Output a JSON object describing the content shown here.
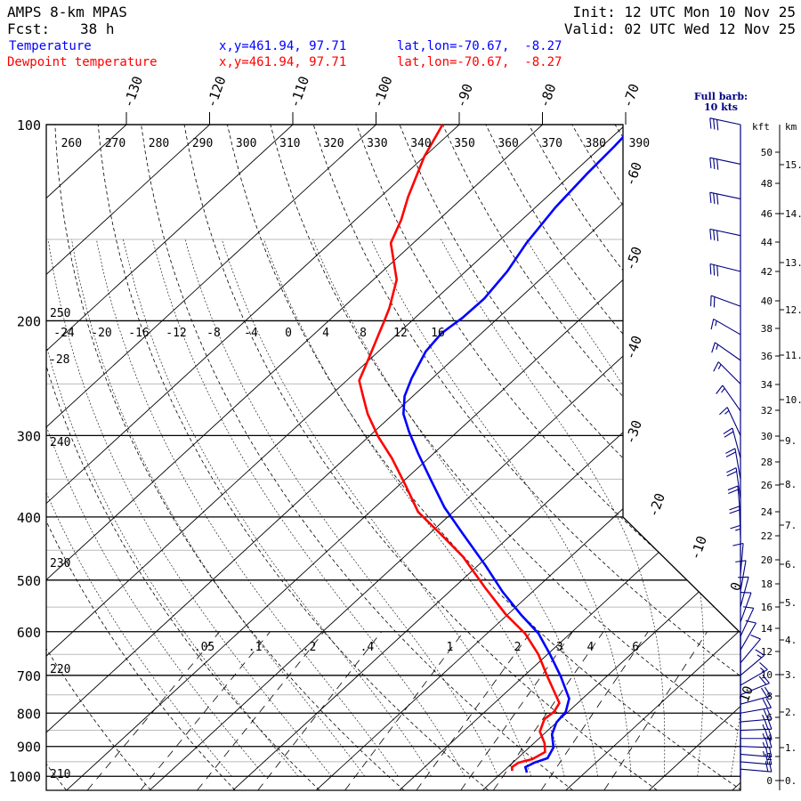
{
  "header": {
    "model": "AMPS 8-km MPAS",
    "forecast_label": "Fcst:",
    "forecast_hours": "38 h",
    "init": "Init: 12 UTC Mon 10 Nov 25",
    "valid": "Valid: 02 UTC Wed 12 Nov 25"
  },
  "legend": [
    {
      "name": "Temperature",
      "xy": "x,y=461.94, 97.71",
      "latlon": "lat,lon=-70.67,  -8.27",
      "color": "#0000ff"
    },
    {
      "name": "Dewpoint temperature",
      "xy": "x,y=461.94, 97.71",
      "latlon": "lat,lon=-70.67,  -8.27",
      "color": "#ff0000"
    }
  ],
  "wind_note": {
    "line1": "Full barb:",
    "line2": "10 kts"
  },
  "chart_data": {
    "type": "line",
    "title": "Skew-T log-P sounding",
    "xlabel": "Temperature (°C)",
    "ylabel": "Pressure (hPa)",
    "ylim": [
      1000,
      100
    ],
    "pressure_ticks": [
      100,
      200,
      300,
      400,
      500,
      600,
      700,
      800,
      900,
      1000
    ],
    "isotherm_labels_top": [
      "-130",
      "-120",
      "-110",
      "-100",
      "-90",
      "-80",
      "-70"
    ],
    "isotherm_labels_right": [
      "-60",
      "-50",
      "-40",
      "-30",
      "-20",
      "-10",
      "0",
      "10"
    ],
    "dry_adiabat_labels_top": [
      "260",
      "270",
      "280",
      "290",
      "300",
      "310",
      "320",
      "330",
      "340",
      "350",
      "360",
      "370",
      "380",
      "390"
    ],
    "dry_adiabat_labels_left": [
      "250",
      "240",
      "230",
      "220",
      "210"
    ],
    "moist_adiabat_labels": [
      "-24",
      "-20",
      "-16",
      "-12",
      "-8",
      "-4",
      "0",
      "4",
      "8",
      "12",
      "16"
    ],
    "moist_adiabat_extra_label": "-28",
    "mixing_ratio_labels": [
      ".05",
      ".1",
      ".2",
      ".4",
      "1",
      "2",
      "3",
      "4",
      "6"
    ],
    "mixing_ratio_values": [
      0.05,
      0.1,
      0.2,
      0.4,
      1,
      2,
      3,
      4,
      6,
      10
    ],
    "height_kft_title": "kft",
    "height_km_title": "km",
    "height_kft_labels": [
      "50",
      "48",
      "46",
      "44",
      "42",
      "40",
      "38",
      "36",
      "34",
      "32",
      "30",
      "28",
      "26",
      "24",
      "22",
      "20",
      "18",
      "16",
      "14",
      "12",
      "10",
      "8",
      "6",
      "4",
      "2",
      "0"
    ],
    "height_km_labels": [
      "15.",
      "14.",
      "13.",
      "12.",
      "11.",
      "10.",
      "9.",
      "8.",
      "7.",
      "6.",
      "5.",
      "4.",
      "3.",
      "2.",
      "1.",
      "0."
    ],
    "series": [
      {
        "name": "Temperature",
        "color": "#0000ff",
        "pressure": [
          100,
          108,
          119,
          134,
          152,
          168,
          185,
          198,
          209,
          223,
          245,
          261,
          278,
          296,
          320,
          352,
          387,
          425,
          474,
          521,
          564,
          604,
          650,
          703,
          760,
          796,
          827,
          862,
          903,
          938,
          953,
          968,
          987
        ],
        "values": [
          -68.9,
          -68.5,
          -68.2,
          -67.6,
          -66.4,
          -65.0,
          -64.2,
          -64.3,
          -64.8,
          -64.3,
          -62.5,
          -61.0,
          -58.8,
          -55.8,
          -51.8,
          -46.7,
          -41.6,
          -35.9,
          -29.2,
          -23.6,
          -18.5,
          -13.8,
          -9.7,
          -5.5,
          -1.6,
          -0.3,
          0.0,
          1.0,
          2.9,
          3.6,
          2.6,
          2.1,
          3.0
        ]
      },
      {
        "name": "Dewpoint temperature",
        "color": "#ff0000",
        "pressure": [
          100,
          112,
          129,
          140,
          152,
          173,
          191,
          200,
          209,
          230,
          247,
          261,
          278,
          301,
          325,
          357,
          393,
          425,
          460,
          513,
          564,
          604,
          650,
          703,
          772,
          796,
          817,
          854,
          890,
          918,
          941,
          953,
          968,
          981
        ],
        "values": [
          -92.0,
          -90.0,
          -86.7,
          -84.5,
          -82.7,
          -77.2,
          -74.4,
          -73.3,
          -72.3,
          -70.1,
          -68.5,
          -66.0,
          -63.1,
          -58.9,
          -54.4,
          -49.3,
          -44.2,
          -38.6,
          -33.0,
          -26.3,
          -20.3,
          -15.4,
          -11.1,
          -7.1,
          -2.2,
          -1.7,
          -1.9,
          -0.8,
          1.3,
          2.5,
          1.9,
          0.7,
          0.5,
          1.0
        ]
      }
    ],
    "wind": [
      {
        "p": 100,
        "dir": 282,
        "spd": 30
      },
      {
        "p": 115,
        "dir": 282,
        "spd": 30
      },
      {
        "p": 130,
        "dir": 282,
        "spd": 30
      },
      {
        "p": 148,
        "dir": 282,
        "spd": 30
      },
      {
        "p": 168,
        "dir": 284,
        "spd": 30
      },
      {
        "p": 190,
        "dir": 290,
        "spd": 20
      },
      {
        "p": 210,
        "dir": 300,
        "spd": 15
      },
      {
        "p": 230,
        "dir": 305,
        "spd": 15
      },
      {
        "p": 250,
        "dir": 315,
        "spd": 15
      },
      {
        "p": 275,
        "dir": 325,
        "spd": 15
      },
      {
        "p": 300,
        "dir": 335,
        "spd": 15
      },
      {
        "p": 325,
        "dir": 345,
        "spd": 20
      },
      {
        "p": 350,
        "dir": 350,
        "spd": 20
      },
      {
        "p": 375,
        "dir": 352,
        "spd": 20
      },
      {
        "p": 400,
        "dir": 355,
        "spd": 20
      },
      {
        "p": 430,
        "dir": 358,
        "spd": 20
      },
      {
        "p": 460,
        "dir": 0,
        "spd": 15
      },
      {
        "p": 490,
        "dir": 5,
        "spd": 10
      },
      {
        "p": 520,
        "dir": 10,
        "spd": 10
      },
      {
        "p": 550,
        "dir": 15,
        "spd": 10
      },
      {
        "p": 580,
        "dir": 20,
        "spd": 10
      },
      {
        "p": 610,
        "dir": 25,
        "spd": 10
      },
      {
        "p": 640,
        "dir": 30,
        "spd": 10
      },
      {
        "p": 670,
        "dir": 40,
        "spd": 10
      },
      {
        "p": 700,
        "dir": 50,
        "spd": 15
      },
      {
        "p": 725,
        "dir": 60,
        "spd": 15
      },
      {
        "p": 750,
        "dir": 68,
        "spd": 20
      },
      {
        "p": 775,
        "dir": 75,
        "spd": 20
      },
      {
        "p": 800,
        "dir": 80,
        "spd": 20
      },
      {
        "p": 825,
        "dir": 85,
        "spd": 25
      },
      {
        "p": 850,
        "dir": 88,
        "spd": 25
      },
      {
        "p": 875,
        "dir": 90,
        "spd": 25
      },
      {
        "p": 900,
        "dir": 92,
        "spd": 25
      },
      {
        "p": 925,
        "dir": 95,
        "spd": 25
      },
      {
        "p": 950,
        "dir": 95,
        "spd": 20
      },
      {
        "p": 975,
        "dir": 95,
        "spd": 20
      }
    ]
  }
}
